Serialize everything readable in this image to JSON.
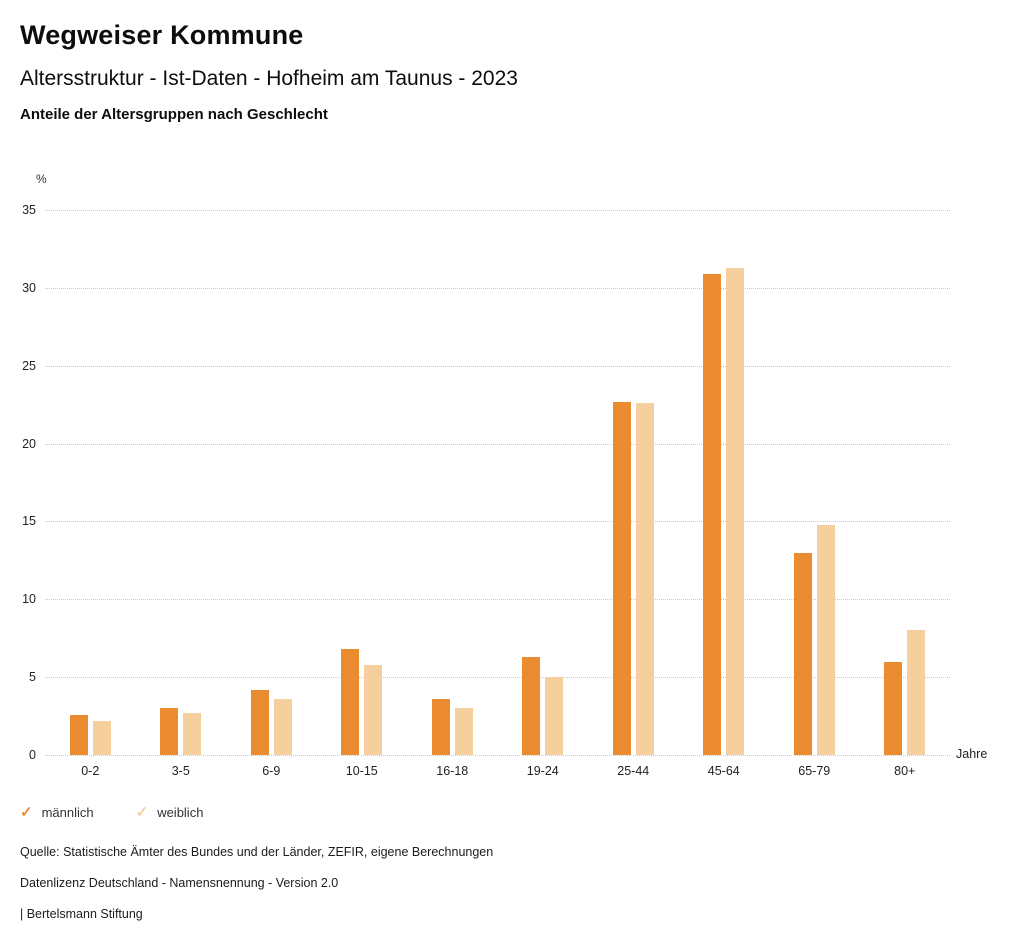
{
  "header": {
    "title": "Wegweiser Kommune",
    "subtitle": "Altersstruktur - Ist-Daten - Hofheim am Taunus - 2023",
    "chart_title": "Anteile der Altersgruppen nach Geschlecht"
  },
  "chart_data": {
    "type": "bar",
    "title": "Anteile der Altersgruppen nach Geschlecht",
    "categories": [
      "0-2",
      "3-5",
      "6-9",
      "10-15",
      "16-18",
      "19-24",
      "25-44",
      "45-64",
      "65-79",
      "80+"
    ],
    "series": [
      {
        "name": "männlich",
        "color": "#EC8C30",
        "values": [
          2.6,
          3.0,
          4.2,
          6.8,
          3.6,
          6.3,
          22.7,
          30.9,
          13.0,
          6.0
        ]
      },
      {
        "name": "weiblich",
        "color": "#F6CF9F",
        "values": [
          2.2,
          2.7,
          3.6,
          5.8,
          3.0,
          5.0,
          22.6,
          31.3,
          14.8,
          8.0
        ]
      }
    ],
    "xlabel": "Jahre",
    "ylabel": "%",
    "ylim": [
      0,
      35
    ],
    "yticks": [
      0,
      5,
      10,
      15,
      20,
      25,
      30,
      35
    ],
    "grid": "dotted-horizontal",
    "legend_position": "bottom-left",
    "legend_marker": "check-icon"
  },
  "footer": {
    "source": "Quelle: Statistische Ämter des Bundes und der Länder, ZEFIR, eigene Berechnungen",
    "license": "Datenlizenz Deutschland - Namensnennung - Version 2.0",
    "attribution": "| Bertelsmann Stiftung"
  }
}
